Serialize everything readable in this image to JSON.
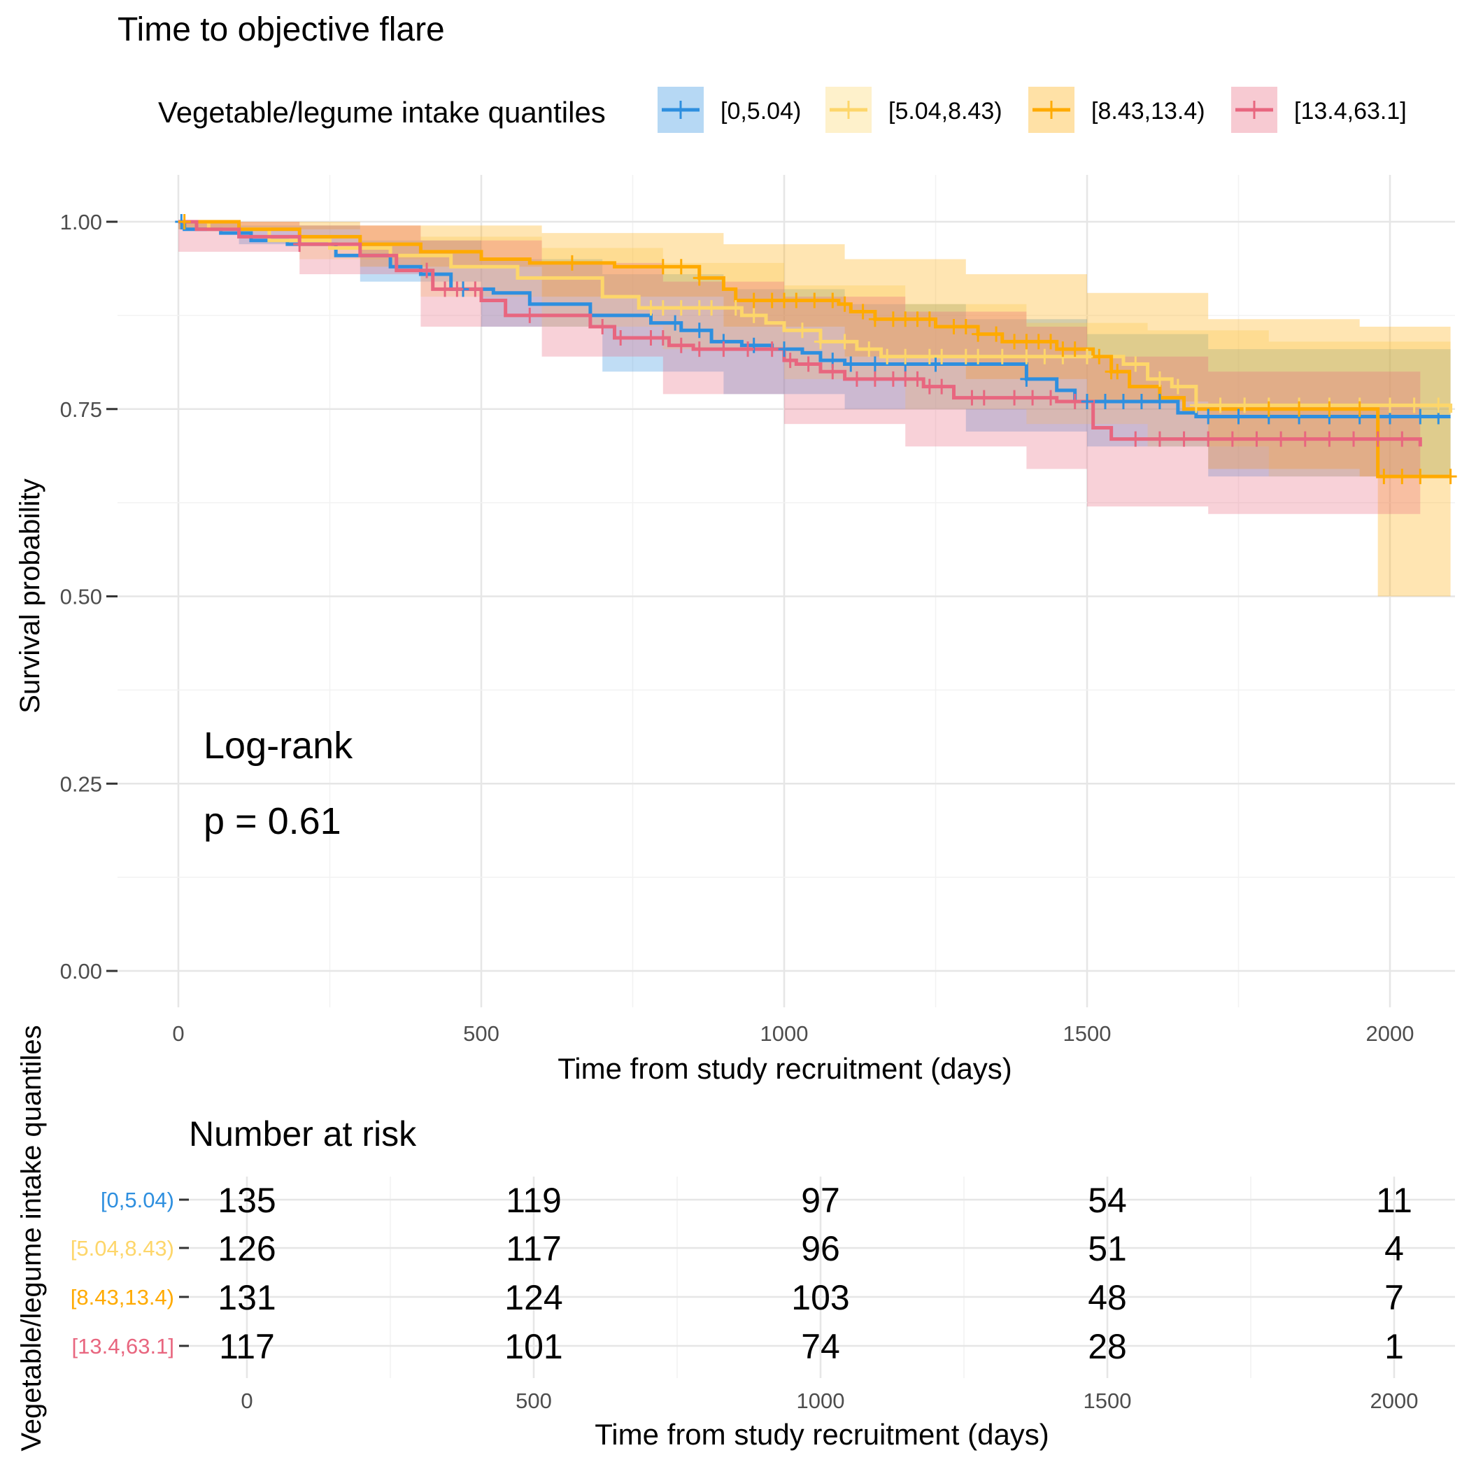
{
  "chart_data": [
    {
      "type": "line",
      "subtype": "kaplan-meier",
      "title": "Time to objective flare",
      "xlabel": "Time from study recruitment (days)",
      "ylabel": "Survival probability",
      "xlim": [
        -100,
        2100
      ],
      "ylim": [
        -0.05,
        1.05
      ],
      "x_ticks": [
        0,
        500,
        1000,
        1500,
        2000
      ],
      "y_ticks": [
        0,
        0.25,
        0.5,
        0.75,
        1
      ],
      "y_tick_labels": [
        "0.00",
        "0.25",
        "0.50",
        "0.75",
        "1.00"
      ],
      "grid": true,
      "legend": {
        "title": "Vegetable/legume intake quantiles",
        "position": "top",
        "entries": [
          "[0,5.04)",
          "[5.04,8.43)",
          "[8.43,13.4)",
          "[13.4,63.1]"
        ]
      },
      "annotation": {
        "line1": "Log-rank",
        "line2": "p = 0.61",
        "p_value": 0.61
      },
      "series": [
        {
          "name": "[0,5.04)",
          "color": "#2E8FDF",
          "steps": [
            [
              0,
              1.0
            ],
            [
              10,
              0.99
            ],
            [
              70,
              0.985
            ],
            [
              120,
              0.975
            ],
            [
              180,
              0.97
            ],
            [
              260,
              0.955
            ],
            [
              350,
              0.94
            ],
            [
              400,
              0.93
            ],
            [
              450,
              0.91
            ],
            [
              520,
              0.905
            ],
            [
              580,
              0.89
            ],
            [
              680,
              0.875
            ],
            [
              780,
              0.865
            ],
            [
              830,
              0.855
            ],
            [
              880,
              0.84
            ],
            [
              930,
              0.835
            ],
            [
              980,
              0.83
            ],
            [
              1030,
              0.825
            ],
            [
              1060,
              0.815
            ],
            [
              1100,
              0.81
            ],
            [
              1400,
              0.79
            ],
            [
              1450,
              0.775
            ],
            [
              1480,
              0.76
            ],
            [
              1650,
              0.745
            ],
            [
              1680,
              0.74
            ],
            [
              2100,
              0.74
            ]
          ],
          "ci_upper": [
            [
              0,
              1.0
            ],
            [
              100,
              0.995
            ],
            [
              300,
              0.975
            ],
            [
              500,
              0.95
            ],
            [
              700,
              0.93
            ],
            [
              900,
              0.91
            ],
            [
              1100,
              0.89
            ],
            [
              1300,
              0.87
            ],
            [
              1500,
              0.85
            ],
            [
              1700,
              0.83
            ],
            [
              1950,
              0.83
            ],
            [
              2100,
              0.83
            ]
          ],
          "ci_lower": [
            [
              0,
              0.99
            ],
            [
              100,
              0.97
            ],
            [
              300,
              0.92
            ],
            [
              500,
              0.86
            ],
            [
              700,
              0.8
            ],
            [
              900,
              0.77
            ],
            [
              1100,
              0.75
            ],
            [
              1300,
              0.72
            ],
            [
              1500,
              0.7
            ],
            [
              1700,
              0.66
            ],
            [
              1950,
              0.66
            ],
            [
              2100,
              0.66
            ]
          ],
          "censor_x": [
            5,
            470,
            820,
            860,
            900,
            950,
            1000,
            1080,
            1110,
            1150,
            1200,
            1250,
            1400,
            1500,
            1530,
            1560,
            1590,
            1620,
            1700,
            1750,
            1800,
            1850,
            1900,
            1950,
            2000,
            2050,
            2080
          ]
        },
        {
          "name": "[5.04,8.43)",
          "color": "#FDD66A",
          "steps": [
            [
              0,
              1.0
            ],
            [
              50,
              0.99
            ],
            [
              150,
              0.975
            ],
            [
              250,
              0.965
            ],
            [
              350,
              0.955
            ],
            [
              450,
              0.94
            ],
            [
              560,
              0.925
            ],
            [
              700,
              0.9
            ],
            [
              760,
              0.885
            ],
            [
              930,
              0.875
            ],
            [
              970,
              0.865
            ],
            [
              1000,
              0.855
            ],
            [
              1060,
              0.84
            ],
            [
              1120,
              0.83
            ],
            [
              1160,
              0.82
            ],
            [
              1560,
              0.81
            ],
            [
              1600,
              0.79
            ],
            [
              1640,
              0.78
            ],
            [
              1680,
              0.755
            ],
            [
              2100,
              0.745
            ]
          ],
          "ci_upper": [
            [
              0,
              1.0
            ],
            [
              200,
              0.995
            ],
            [
              400,
              0.98
            ],
            [
              600,
              0.965
            ],
            [
              800,
              0.945
            ],
            [
              1000,
              0.915
            ],
            [
              1200,
              0.89
            ],
            [
              1400,
              0.865
            ],
            [
              1600,
              0.855
            ],
            [
              1800,
              0.84
            ],
            [
              2100,
              0.84
            ]
          ],
          "ci_lower": [
            [
              0,
              0.99
            ],
            [
              200,
              0.95
            ],
            [
              400,
              0.9
            ],
            [
              600,
              0.86
            ],
            [
              800,
              0.83
            ],
            [
              1000,
              0.79
            ],
            [
              1200,
              0.75
            ],
            [
              1400,
              0.73
            ],
            [
              1600,
              0.7
            ],
            [
              1800,
              0.66
            ],
            [
              2100,
              0.66
            ]
          ],
          "censor_x": [
            780,
            800,
            830,
            860,
            880,
            920,
            950,
            1030,
            1060,
            1100,
            1140,
            1170,
            1200,
            1240,
            1260,
            1300,
            1320,
            1360,
            1400,
            1430,
            1460,
            1500,
            1580,
            1620,
            1650,
            1680,
            1720,
            1760,
            1800,
            1850,
            1900,
            1950,
            2000,
            2040,
            2080
          ]
        },
        {
          "name": "[8.43,13.4)",
          "color": "#FFAA00",
          "steps": [
            [
              0,
              1.0
            ],
            [
              100,
              0.99
            ],
            [
              200,
              0.98
            ],
            [
              300,
              0.97
            ],
            [
              400,
              0.96
            ],
            [
              500,
              0.95
            ],
            [
              580,
              0.945
            ],
            [
              720,
              0.94
            ],
            [
              860,
              0.925
            ],
            [
              900,
              0.91
            ],
            [
              920,
              0.895
            ],
            [
              1090,
              0.89
            ],
            [
              1110,
              0.88
            ],
            [
              1150,
              0.87
            ],
            [
              1250,
              0.86
            ],
            [
              1320,
              0.85
            ],
            [
              1360,
              0.84
            ],
            [
              1450,
              0.83
            ],
            [
              1510,
              0.82
            ],
            [
              1540,
              0.8
            ],
            [
              1570,
              0.78
            ],
            [
              1620,
              0.765
            ],
            [
              1660,
              0.75
            ],
            [
              1980,
              0.74
            ],
            [
              1980,
              0.66
            ],
            [
              2100,
              0.66
            ]
          ],
          "ci_upper": [
            [
              0,
              1.0
            ],
            [
              300,
              0.995
            ],
            [
              600,
              0.985
            ],
            [
              900,
              0.97
            ],
            [
              1100,
              0.95
            ],
            [
              1300,
              0.93
            ],
            [
              1500,
              0.905
            ],
            [
              1700,
              0.87
            ],
            [
              1950,
              0.86
            ],
            [
              1980,
              0.86
            ],
            [
              2100,
              0.86
            ]
          ],
          "ci_lower": [
            [
              0,
              0.99
            ],
            [
              300,
              0.94
            ],
            [
              600,
              0.9
            ],
            [
              900,
              0.86
            ],
            [
              1100,
              0.82
            ],
            [
              1300,
              0.79
            ],
            [
              1500,
              0.76
            ],
            [
              1700,
              0.67
            ],
            [
              1950,
              0.66
            ],
            [
              1980,
              0.5
            ],
            [
              2100,
              0.5
            ]
          ],
          "censor_x": [
            10,
            650,
            800,
            830,
            860,
            950,
            980,
            1000,
            1020,
            1050,
            1080,
            1100,
            1130,
            1150,
            1180,
            1200,
            1220,
            1240,
            1280,
            1300,
            1320,
            1350,
            1380,
            1400,
            1420,
            1440,
            1460,
            1480,
            1520,
            1540,
            1550,
            1800,
            1850,
            1900,
            1950,
            1990,
            2020,
            2050,
            2100
          ]
        },
        {
          "name": "[13.4,63.1]",
          "color": "#E8667F",
          "steps": [
            [
              0,
              1.0
            ],
            [
              30,
              0.99
            ],
            [
              100,
              0.98
            ],
            [
              200,
              0.97
            ],
            [
              300,
              0.955
            ],
            [
              360,
              0.935
            ],
            [
              420,
              0.91
            ],
            [
              500,
              0.895
            ],
            [
              540,
              0.875
            ],
            [
              680,
              0.86
            ],
            [
              720,
              0.845
            ],
            [
              810,
              0.835
            ],
            [
              850,
              0.83
            ],
            [
              1000,
              0.815
            ],
            [
              1020,
              0.81
            ],
            [
              1060,
              0.8
            ],
            [
              1100,
              0.79
            ],
            [
              1230,
              0.78
            ],
            [
              1280,
              0.765
            ],
            [
              1450,
              0.76
            ],
            [
              1510,
              0.725
            ],
            [
              1540,
              0.71
            ],
            [
              2050,
              0.7
            ]
          ],
          "ci_upper": [
            [
              0,
              1.0
            ],
            [
              200,
              0.995
            ],
            [
              400,
              0.975
            ],
            [
              600,
              0.945
            ],
            [
              800,
              0.92
            ],
            [
              1000,
              0.9
            ],
            [
              1200,
              0.88
            ],
            [
              1400,
              0.86
            ],
            [
              1500,
              0.82
            ],
            [
              1700,
              0.8
            ],
            [
              2050,
              0.79
            ]
          ],
          "ci_lower": [
            [
              0,
              0.96
            ],
            [
              200,
              0.93
            ],
            [
              400,
              0.86
            ],
            [
              600,
              0.82
            ],
            [
              800,
              0.77
            ],
            [
              1000,
              0.73
            ],
            [
              1200,
              0.7
            ],
            [
              1400,
              0.67
            ],
            [
              1500,
              0.62
            ],
            [
              1700,
              0.61
            ],
            [
              2050,
              0.61
            ]
          ],
          "censor_x": [
            200,
            410,
            440,
            460,
            490,
            580,
            700,
            730,
            780,
            800,
            830,
            860,
            900,
            940,
            980,
            1010,
            1040,
            1080,
            1120,
            1150,
            1180,
            1200,
            1220,
            1240,
            1260,
            1310,
            1330,
            1380,
            1410,
            1440,
            1480,
            1580,
            1620,
            1660,
            1700,
            1740,
            1780,
            1820,
            1860,
            1900,
            1940,
            1980,
            2020
          ]
        }
      ]
    },
    {
      "type": "table",
      "title": "Number at risk",
      "xlabel": "Time from study recruitment (days)",
      "ylabel": "Vegetable/legume intake quantiles",
      "x_ticks": [
        0,
        500,
        1000,
        1500,
        2000
      ],
      "rows": [
        {
          "label": "[0,5.04)",
          "color": "#2E8FDF",
          "values": [
            135,
            119,
            97,
            54,
            11
          ]
        },
        {
          "label": "[5.04,8.43)",
          "color": "#FDD66A",
          "values": [
            126,
            117,
            96,
            51,
            4
          ]
        },
        {
          "label": "[8.43,13.4)",
          "color": "#FFAA00",
          "values": [
            131,
            124,
            103,
            48,
            7
          ]
        },
        {
          "label": "[13.4,63.1]",
          "color": "#E8667F",
          "values": [
            117,
            101,
            74,
            28,
            1
          ]
        }
      ]
    }
  ]
}
